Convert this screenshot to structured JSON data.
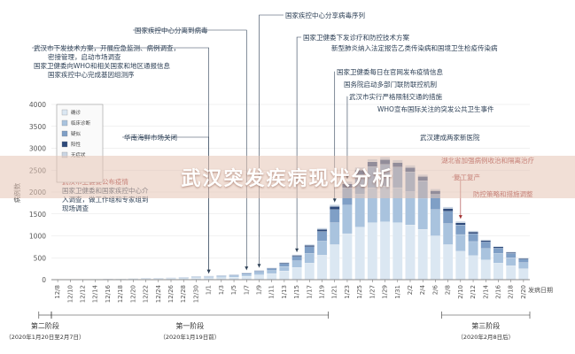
{
  "banner": {
    "title": "武汉突发疾病现状分析"
  },
  "chart_data": {
    "type": "bar",
    "stacked": true,
    "ylabel": "病例数",
    "xlabel": "发病日期",
    "ylim": [
      0,
      4000
    ],
    "yticks": [
      0,
      500,
      1000,
      1500,
      2000,
      2500,
      3000,
      3500,
      4000
    ],
    "categories": [
      "12/8",
      "12/10",
      "12/12",
      "12/14",
      "12/16",
      "12/18",
      "12/20",
      "12/22",
      "12/24",
      "12/26",
      "12/28",
      "12/30",
      "1/1",
      "1/3",
      "1/5",
      "1/7",
      "1/9",
      "1/11",
      "1/13",
      "1/15",
      "1/17",
      "1/19",
      "1/21",
      "1/23",
      "1/25",
      "1/27",
      "1/29",
      "1/31",
      "2/2",
      "2/4",
      "2/6",
      "2/8",
      "2/10",
      "2/12",
      "2/14",
      "2/16",
      "2/18",
      "2/20"
    ],
    "tick_labels": [
      "12/8",
      "12/10",
      "12/12",
      "12/14",
      "12/16",
      "12/18",
      "12/20",
      "12/22",
      "12/24",
      "12/26",
      "12/28",
      "12/30",
      "1/1",
      "1/3",
      "1/5",
      "1/7",
      "1/9",
      "1/11",
      "1/13",
      "1/15",
      "1/17",
      "1/19",
      "1/21",
      "1/23",
      "1/25",
      "1/27",
      "1/29",
      "1/31",
      "2/2",
      "2/4",
      "2/6",
      "2/8",
      "2/10",
      "2/12",
      "2/14",
      "2/16",
      "2/18",
      "2/20"
    ],
    "series": [
      {
        "name": "确诊",
        "color": "#dbe7f2",
        "values": [
          5,
          5,
          5,
          5,
          10,
          10,
          15,
          20,
          20,
          25,
          30,
          40,
          45,
          50,
          60,
          80,
          110,
          140,
          200,
          280,
          380,
          560,
          800,
          1050,
          1200,
          1300,
          1320,
          1300,
          1250,
          1150,
          1000,
          800,
          650,
          550,
          450,
          380,
          320,
          250
        ]
      },
      {
        "name": "临床诊断",
        "color": "#a9c3de",
        "values": [
          2,
          2,
          2,
          3,
          5,
          5,
          8,
          10,
          10,
          12,
          15,
          18,
          20,
          25,
          30,
          40,
          55,
          70,
          100,
          150,
          220,
          320,
          500,
          650,
          750,
          800,
          820,
          800,
          760,
          700,
          600,
          480,
          380,
          320,
          260,
          220,
          180,
          140
        ]
      },
      {
        "name": "疑似",
        "color": "#7f9fc6",
        "values": [
          1,
          1,
          1,
          2,
          3,
          3,
          5,
          6,
          6,
          8,
          10,
          12,
          14,
          16,
          20,
          25,
          35,
          45,
          70,
          100,
          150,
          220,
          300,
          400,
          450,
          480,
          490,
          470,
          450,
          410,
          350,
          280,
          220,
          180,
          150,
          120,
          100,
          80
        ]
      },
      {
        "name": "阳性",
        "color": "#2e4a7a",
        "values": [
          0,
          0,
          0,
          0,
          1,
          1,
          1,
          2,
          2,
          2,
          3,
          3,
          4,
          5,
          6,
          8,
          10,
          12,
          18,
          25,
          35,
          50,
          70,
          90,
          100,
          110,
          110,
          105,
          100,
          95,
          80,
          65,
          50,
          40,
          35,
          30,
          25,
          20
        ]
      },
      {
        "name": "无症状",
        "color": "#c9d5e3",
        "values": [
          0,
          0,
          0,
          0,
          0,
          1,
          1,
          1,
          1,
          2,
          2,
          2,
          3,
          3,
          4,
          5,
          6,
          8,
          10,
          15,
          20,
          30,
          40,
          50,
          60,
          60,
          60,
          55,
          50,
          45,
          40,
          35,
          30,
          25,
          20,
          15,
          12,
          10
        ]
      }
    ],
    "annotations": [
      {
        "text": "国家疾控中心分享病毒序列",
        "date": "1/9",
        "color": "dark"
      },
      {
        "text": "国家疾控中心分离到病毒",
        "date": "1/7",
        "color": "dark"
      },
      {
        "text": "武汉市下发技术方案，开展应急监测、病例调查，",
        "date": "1/1",
        "color": "dark"
      },
      {
        "text": "密接管理，启动市场调查",
        "date": "",
        "color": "dark"
      },
      {
        "text": "国家卫健委向WHO和相关国家和地区通报信息",
        "date": "",
        "color": "dark"
      },
      {
        "text": "国家疾控中心完成基因组测序",
        "date": "",
        "color": "dark"
      },
      {
        "text": "国家卫健委下发诊疗和防控技术方案",
        "date": "1/15",
        "color": "dark"
      },
      {
        "text": "新型肺炎纳入法定报告乙类传染病和国境卫生检疫传染病",
        "date": "1/20",
        "color": "dark"
      },
      {
        "text": "国家卫健委每日在官网发布疫情信息",
        "date": "1/21",
        "color": "dark"
      },
      {
        "text": "国务院启动多部门联防联控机制",
        "date": "1/22",
        "color": "dark"
      },
      {
        "text": "武汉市实行严格限制交通的措施",
        "date": "1/23",
        "color": "dark"
      },
      {
        "text": "WHO宣布国际关注的突发公共卫生事件",
        "date": "1/30",
        "color": "dark"
      },
      {
        "text": "武汉建成两家新医院",
        "date": "2/3",
        "color": "dark"
      },
      {
        "text": "湖北省加强病例收治和隔离治疗",
        "date": "2/5",
        "color": "red"
      },
      {
        "text": "复工复产",
        "date": "2/10",
        "color": "red"
      },
      {
        "text": "防控策略和措施调整",
        "date": "2/17",
        "color": "red"
      },
      {
        "text": "华南海鲜市场关闭",
        "date": "1/1",
        "color": "dark"
      },
      {
        "text": "武汉市卫健委公布疫情",
        "date": "12/31",
        "color": "red"
      },
      {
        "text": "国家卫健委和国家疾控中心介",
        "date": "12/31",
        "color": "dark"
      },
      {
        "text": "入调查，做工作组和专家组到",
        "date": "",
        "color": "dark"
      },
      {
        "text": "现场调查",
        "date": "",
        "color": "dark"
      }
    ],
    "phases": [
      {
        "title": "第一阶段",
        "sub": "（2020年1月19日前）",
        "from": "12/8",
        "to": "1/19"
      },
      {
        "title": "第二阶段",
        "sub": "（2020年1月20日至2月7日）",
        "from": "1/20",
        "to": "2/7"
      },
      {
        "title": "第三阶段",
        "sub": "（2020年2月8日后）",
        "from": "2/8",
        "to": "2/20"
      }
    ]
  }
}
